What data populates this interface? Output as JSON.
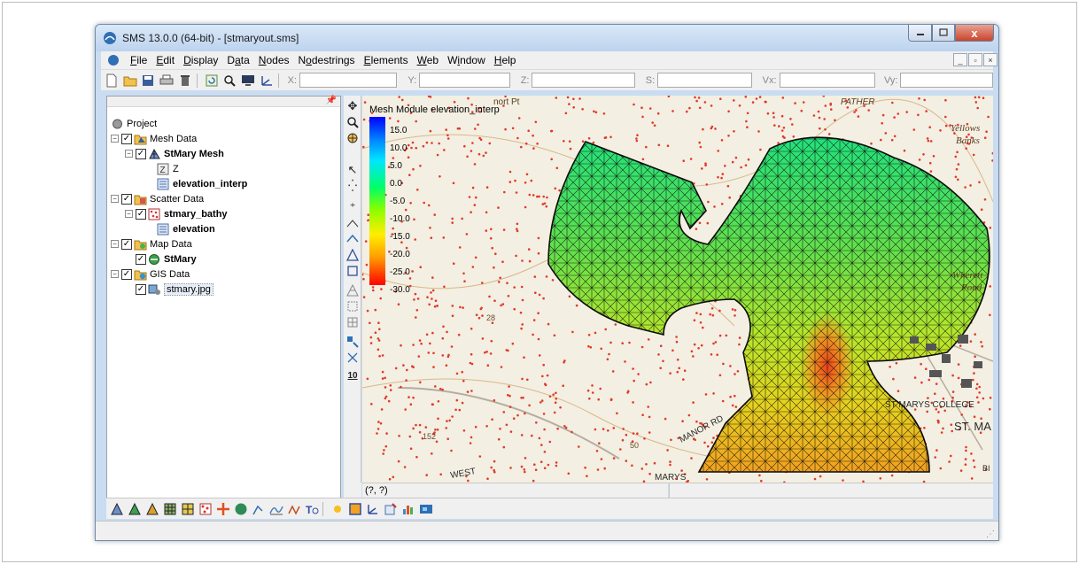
{
  "window": {
    "title": "SMS 13.0.0 (64-bit) - [stmaryout.sms]",
    "close_glyph": "x"
  },
  "menu": {
    "items": [
      {
        "pre": "",
        "u": "F",
        "post": "ile"
      },
      {
        "pre": "",
        "u": "E",
        "post": "dit"
      },
      {
        "pre": "",
        "u": "D",
        "post": "isplay"
      },
      {
        "pre": "D",
        "u": "a",
        "post": "ta"
      },
      {
        "pre": "",
        "u": "N",
        "post": "odes"
      },
      {
        "pre": "N",
        "u": "o",
        "post": "destrings"
      },
      {
        "pre": "",
        "u": "E",
        "post": "lements"
      },
      {
        "pre": "",
        "u": "W",
        "post": "eb"
      },
      {
        "pre": "W",
        "u": "i",
        "post": "ndow"
      },
      {
        "pre": "",
        "u": "H",
        "post": "elp"
      }
    ]
  },
  "toolbar": {
    "labels": {
      "x": "X:",
      "y": "Y:",
      "z": "Z:",
      "s": "S:",
      "vx": "Vx:",
      "vy": "Vy:"
    },
    "values": {
      "x": "",
      "y": "",
      "z": "",
      "s": "",
      "vx": "",
      "vy": ""
    }
  },
  "tree": {
    "project": "Project",
    "mesh_data": "Mesh Data",
    "mesh_name": "StMary Mesh",
    "z": "Z",
    "elevation_interp": "elevation_interp",
    "scatter_data": "Scatter Data",
    "scatter_name": "stmary_bathy",
    "elevation": "elevation",
    "map_data": "Map Data",
    "map_name": "StMary",
    "gis_data": "GIS Data",
    "gis_image": "stmary.jpg"
  },
  "legend": {
    "title": "Mesh Module elevation_interp",
    "labels": [
      "15.0",
      "10.0",
      "5.0",
      "0.0",
      "-5.0",
      "-10.0",
      "-15.0",
      "-20.0",
      "-25.0",
      "-30.0"
    ]
  },
  "map_labels": {
    "point": "nort Pt",
    "father": "FATHER",
    "yellows": "Yellows",
    "banks": "Banks",
    "wherett": "Wherett",
    "pond": "Pond",
    "college": "ST MARYS COLLEGE",
    "stma": "ST. MA",
    "manor": "MANOR RD",
    "west": "WEST",
    "marys": "MARYS",
    "n28": "28",
    "n50": "50",
    "n152": "152",
    "bi": "BI"
  },
  "status": {
    "coords": "(?, ?)"
  },
  "colors": {
    "accent": "#3a6cc0",
    "map_dots": "#e03a2a",
    "mesh_lines": "#0b0b0b"
  }
}
